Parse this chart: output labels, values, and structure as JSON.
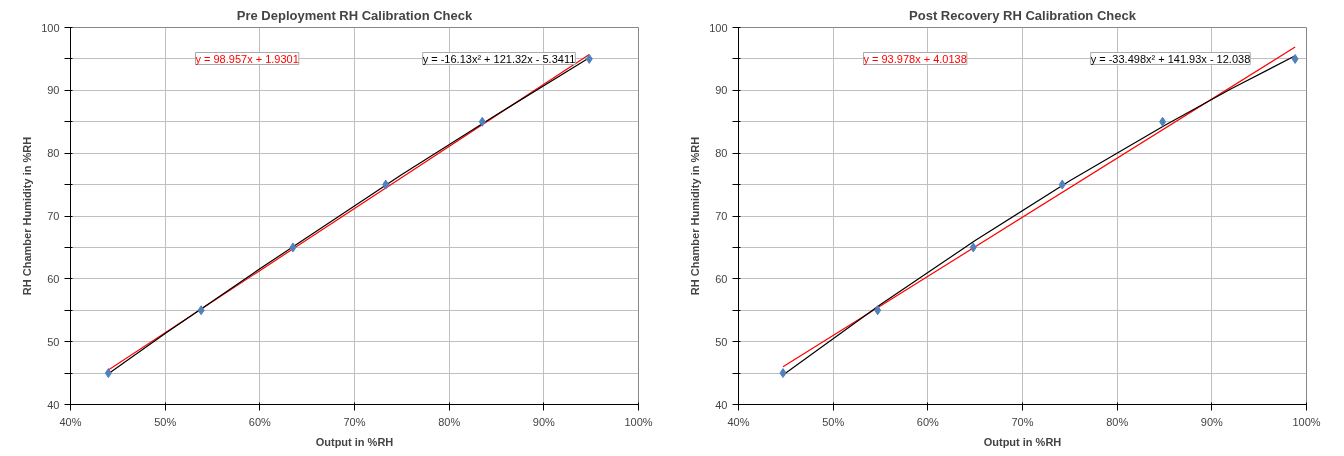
{
  "chart_data": [
    {
      "type": "scatter",
      "title": "Pre Deployment RH Calibration Check",
      "xlabel": "Output in %RH",
      "ylabel": "RH Chamber Humidity in %RH",
      "xlim": [
        0.4,
        1.0
      ],
      "ylim": [
        40,
        100
      ],
      "xticks": [
        {
          "value": 0.4,
          "label": "40%"
        },
        {
          "value": 0.5,
          "label": "50%"
        },
        {
          "value": 0.6,
          "label": "60%"
        },
        {
          "value": 0.7,
          "label": "70%"
        },
        {
          "value": 0.8,
          "label": "80%"
        },
        {
          "value": 0.9,
          "label": "90%"
        },
        {
          "value": 1.0,
          "label": "100%"
        }
      ],
      "yticks": [
        40,
        {
          "value": 45,
          "label": null
        },
        50,
        {
          "value": 55,
          "label": null
        },
        60,
        {
          "value": 65,
          "label": null
        },
        70,
        {
          "value": 75,
          "label": null
        },
        80,
        {
          "value": 85,
          "label": null
        },
        90,
        {
          "value": 95,
          "label": null
        },
        100
      ],
      "grid": true,
      "series": [
        {
          "marker": "diamond",
          "color": "#4f81bd",
          "x": [
            0.44,
            0.538,
            0.635,
            0.733,
            0.835,
            0.948
          ],
          "values": [
            45,
            55,
            65,
            75,
            85,
            95
          ]
        },
        {
          "type": "line",
          "marker": "none",
          "color": "#ff0000",
          "x": [
            0.44,
            0.948
          ],
          "values": [
            45.5,
            95.7
          ]
        },
        {
          "type": "line",
          "marker": "none",
          "color": "#000000",
          "x": [
            0.44,
            0.5,
            0.6,
            0.75,
            0.85,
            0.948
          ],
          "values": [
            44.9,
            51.3,
            61.6,
            76.6,
            86.1,
            95.2
          ]
        }
      ],
      "annotations": [
        "y = 98.957x + 1.9301",
        "y = -16.13x² + 121.32x - 5.3411"
      ]
    },
    {
      "type": "scatter",
      "title": "Post Recovery RH Calibration Check",
      "xlabel": "Output in %RH",
      "ylabel": "RH Chamber Humidity in %RH",
      "xlim": [
        0.4,
        1.0
      ],
      "ylim": [
        40,
        100
      ],
      "xticks": [
        {
          "value": 0.4,
          "label": "40%"
        },
        {
          "value": 0.5,
          "label": "50%"
        },
        {
          "value": 0.6,
          "label": "60%"
        },
        {
          "value": 0.7,
          "label": "70%"
        },
        {
          "value": 0.8,
          "label": "80%"
        },
        {
          "value": 0.9,
          "label": "90%"
        },
        {
          "value": 1.0,
          "label": "100%"
        }
      ],
      "yticks": [
        40,
        {
          "value": 45,
          "label": null
        },
        50,
        {
          "value": 55,
          "label": null
        },
        60,
        {
          "value": 65,
          "label": null
        },
        70,
        {
          "value": 75,
          "label": null
        },
        80,
        {
          "value": 85,
          "label": null
        },
        90,
        {
          "value": 95,
          "label": null
        },
        100
      ],
      "grid": true,
      "series": [
        {
          "marker": "diamond",
          "color": "#4f81bd",
          "x": [
            0.447,
            0.547,
            0.648,
            0.742,
            0.848,
            0.988
          ],
          "values": [
            45,
            55,
            65,
            75,
            85,
            95
          ]
        },
        {
          "type": "line",
          "marker": "none",
          "color": "#ff0000",
          "x": [
            0.447,
            0.988
          ],
          "values": [
            46.0,
            96.9
          ]
        },
        {
          "type": "line",
          "marker": "none",
          "color": "#000000",
          "x": [
            0.447,
            0.55,
            0.65,
            0.75,
            0.85,
            0.92,
            0.988
          ],
          "values": [
            44.7,
            55.9,
            66.1,
            75.6,
            84.4,
            90.2,
            95.5
          ]
        }
      ],
      "annotations": [
        "y = 93.978x + 4.0138",
        "y = -33.498x² + 141.93x - 12.038"
      ]
    }
  ]
}
